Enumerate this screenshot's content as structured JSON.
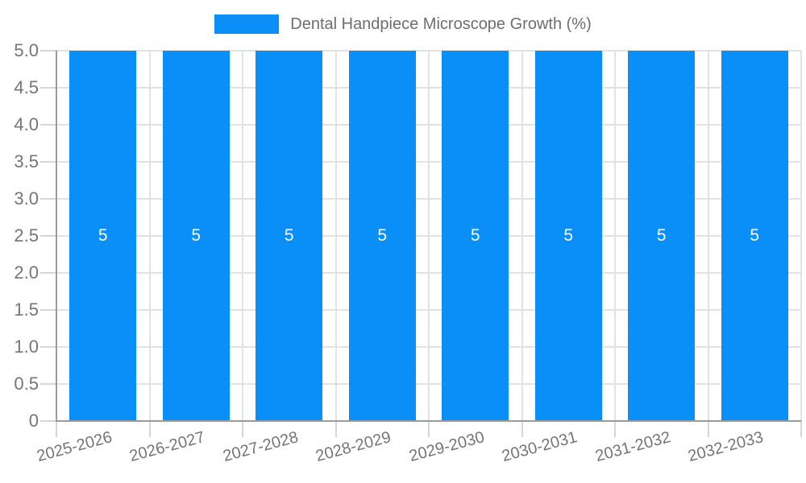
{
  "legend": {
    "label": "Dental Handpiece Microscope Growth (%)",
    "swatch_color": "#0a8ff9"
  },
  "chart_data": {
    "type": "bar",
    "title": "Dental Handpiece Microscope Growth (%)",
    "series": [
      {
        "name": "Dental Handpiece Microscope Growth (%)",
        "values": [
          5,
          5,
          5,
          5,
          5,
          5,
          5,
          5
        ]
      }
    ],
    "categories": [
      "2025-2026",
      "2026-2027",
      "2027-2028",
      "2028-2029",
      "2029-2030",
      "2030-2031",
      "2031-2032",
      "2032-2033"
    ],
    "bar_value_labels": [
      "5",
      "5",
      "5",
      "5",
      "5",
      "5",
      "5",
      "5"
    ],
    "xlabel": "",
    "ylabel": "",
    "ylim": [
      0,
      5
    ],
    "ytick_step": 0.5,
    "ytick_labels_top_to_bottom": [
      "5.0",
      "4.5",
      "4.0",
      "3.5",
      "3.0",
      "2.5",
      "2.0",
      "1.5",
      "1.0",
      "0.5",
      "0"
    ],
    "grid": true,
    "legend_position": "top-center",
    "colors": {
      "bar": "#0a8ff9",
      "bar_label": "#ffffff",
      "gridline": "#e2e2e2",
      "tick": "#d6d6d6",
      "axis_line": "#9a9a9a",
      "tick_label": "#757575",
      "legend_text": "#6e6e6e",
      "background": "#ffffff"
    }
  }
}
